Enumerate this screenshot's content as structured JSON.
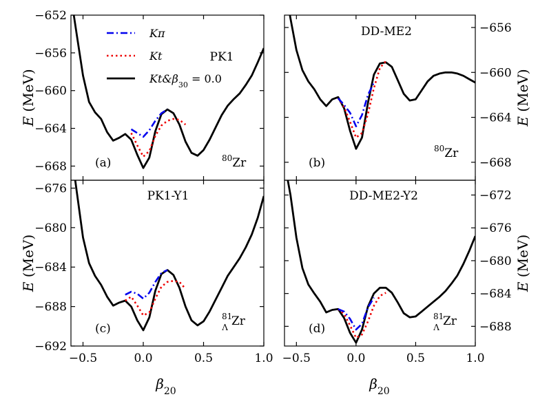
{
  "x_axis_label": "β20",
  "y_axis_label": "E (MeV)",
  "legend": [
    {
      "key": "k_pi",
      "label": "Kπ",
      "color": "#0000ee",
      "dash": "dashdot"
    },
    {
      "key": "k_t",
      "label": "Kt",
      "color": "#ee0000",
      "dash": "dotted"
    },
    {
      "key": "k_beta",
      "label": "Kt&β30 = 0.0",
      "color": "#000000",
      "dash": "solid"
    }
  ],
  "chart_data": [
    {
      "type": "line",
      "panel_label": "(a)",
      "title": "PK1",
      "nucleus": "80Zr",
      "xlim": [
        -0.6,
        1.0
      ],
      "ylim": [
        -669.5,
        -652
      ],
      "yticks": [
        -652,
        -656,
        -660,
        -664,
        -668
      ],
      "xticks": [
        -0.5,
        0.0,
        0.5,
        1.0
      ],
      "y_axis_side": "left",
      "series": [
        {
          "name": "Kπ",
          "color": "#0000ee",
          "style": "dashdot",
          "x": [
            -0.1,
            -0.05,
            0.0,
            0.05,
            0.1,
            0.15,
            0.2
          ],
          "y": [
            -664.1,
            -664.5,
            -664.9,
            -664.2,
            -663.2,
            -662.4,
            -662.0
          ]
        },
        {
          "name": "Kt",
          "color": "#ee0000",
          "style": "dotted",
          "x": [
            -0.1,
            -0.05,
            0.0,
            0.05,
            0.1,
            0.15,
            0.2,
            0.25,
            0.3,
            0.35
          ],
          "y": [
            -664.5,
            -665.8,
            -667.0,
            -666.4,
            -664.8,
            -663.7,
            -663.2,
            -663.0,
            -663.1,
            -663.6
          ]
        },
        {
          "name": "Kt&β30 = 0.0",
          "color": "#000000",
          "style": "solid",
          "x": [
            -0.6,
            -0.55,
            -0.5,
            -0.45,
            -0.4,
            -0.35,
            -0.3,
            -0.25,
            -0.2,
            -0.15,
            -0.1,
            -0.05,
            0.0,
            0.05,
            0.1,
            0.15,
            0.2,
            0.25,
            0.3,
            0.35,
            0.4,
            0.45,
            0.5,
            0.55,
            0.6,
            0.65,
            0.7,
            0.75,
            0.8,
            0.85,
            0.9,
            0.95,
            1.0
          ],
          "y": [
            -650.0,
            -654.2,
            -658.4,
            -661.2,
            -662.3,
            -663.0,
            -664.4,
            -665.3,
            -665.0,
            -664.6,
            -665.2,
            -666.8,
            -668.2,
            -667.1,
            -664.3,
            -662.5,
            -662.0,
            -662.4,
            -663.6,
            -665.4,
            -666.6,
            -666.9,
            -666.3,
            -665.2,
            -663.9,
            -662.6,
            -661.6,
            -660.9,
            -660.3,
            -659.4,
            -658.4,
            -657.0,
            -655.5
          ]
        }
      ]
    },
    {
      "type": "line",
      "panel_label": "(b)",
      "title": "DD-ME2",
      "nucleus": "80Zr",
      "xlim": [
        -0.6,
        1.0
      ],
      "ylim": [
        -669.6,
        -654.9
      ],
      "yticks": [
        -656,
        -660,
        -664,
        -668
      ],
      "xticks": [
        -0.5,
        0.0,
        0.5,
        1.0
      ],
      "y_axis_side": "right",
      "series": [
        {
          "name": "Kπ",
          "color": "#0000ee",
          "style": "dashdot",
          "x": [
            -0.15,
            -0.1,
            -0.05,
            0.0,
            0.05,
            0.1,
            0.15
          ],
          "y": [
            -662.3,
            -662.9,
            -663.6,
            -664.8,
            -663.8,
            -662.0,
            -660.9
          ]
        },
        {
          "name": "Kt",
          "color": "#ee0000",
          "style": "dotted",
          "x": [
            -0.15,
            -0.1,
            -0.05,
            0.0,
            0.05,
            0.1,
            0.15,
            0.2,
            0.25
          ],
          "y": [
            -662.3,
            -663.1,
            -664.4,
            -665.8,
            -665.4,
            -663.7,
            -661.4,
            -659.6,
            -659.0
          ]
        },
        {
          "name": "Kt&β30 = 0.0",
          "color": "#000000",
          "style": "solid",
          "x": [
            -0.6,
            -0.55,
            -0.5,
            -0.45,
            -0.4,
            -0.35,
            -0.3,
            -0.25,
            -0.2,
            -0.15,
            -0.1,
            -0.05,
            0.0,
            0.05,
            0.1,
            0.15,
            0.2,
            0.25,
            0.3,
            0.35,
            0.4,
            0.45,
            0.5,
            0.55,
            0.6,
            0.65,
            0.7,
            0.75,
            0.8,
            0.85,
            0.9,
            0.95,
            1.0
          ],
          "y": [
            -652.0,
            -655.2,
            -658.0,
            -659.8,
            -660.8,
            -661.5,
            -662.4,
            -663.0,
            -662.4,
            -662.2,
            -663.2,
            -665.2,
            -666.8,
            -665.8,
            -662.7,
            -660.2,
            -659.2,
            -659.1,
            -659.5,
            -660.7,
            -661.9,
            -662.5,
            -662.4,
            -661.6,
            -660.8,
            -660.3,
            -660.1,
            -660.0,
            -660.0,
            -660.1,
            -660.3,
            -660.6,
            -660.9
          ]
        }
      ]
    },
    {
      "type": "line",
      "panel_label": "(c)",
      "title": "PK1-Y1",
      "nucleus": "81ΛZr",
      "xlim": [
        -0.6,
        1.0
      ],
      "ylim": [
        -692,
        -675.2
      ],
      "yticks": [
        -676,
        -680,
        -684,
        -688,
        -692
      ],
      "xticks": [
        -0.5,
        0.0,
        0.5,
        1.0
      ],
      "y_axis_side": "left",
      "series": [
        {
          "name": "Kπ",
          "color": "#0000ee",
          "style": "dashdot",
          "x": [
            -0.15,
            -0.1,
            -0.05,
            0.0,
            0.05,
            0.1,
            0.15,
            0.2
          ],
          "y": [
            -686.8,
            -686.5,
            -686.7,
            -687.2,
            -686.6,
            -685.5,
            -684.6,
            -684.3
          ]
        },
        {
          "name": "Kt",
          "color": "#ee0000",
          "style": "dotted",
          "x": [
            -0.15,
            -0.1,
            -0.05,
            0.0,
            0.05,
            0.1,
            0.15,
            0.2,
            0.25,
            0.3,
            0.35
          ],
          "y": [
            -687.4,
            -687.0,
            -687.9,
            -688.9,
            -688.6,
            -687.2,
            -686.0,
            -685.5,
            -685.4,
            -685.5,
            -686.2
          ]
        },
        {
          "name": "Kt&β30 = 0.0",
          "color": "#000000",
          "style": "solid",
          "x": [
            -0.6,
            -0.55,
            -0.5,
            -0.45,
            -0.4,
            -0.35,
            -0.3,
            -0.25,
            -0.2,
            -0.15,
            -0.1,
            -0.05,
            0.0,
            0.05,
            0.1,
            0.15,
            0.2,
            0.25,
            0.3,
            0.35,
            0.4,
            0.45,
            0.5,
            0.55,
            0.6,
            0.65,
            0.7,
            0.75,
            0.8,
            0.85,
            0.9,
            0.95,
            1.0
          ],
          "y": [
            -672.0,
            -676.5,
            -681.0,
            -683.6,
            -684.9,
            -685.8,
            -687.0,
            -687.9,
            -687.6,
            -687.4,
            -688.0,
            -689.4,
            -690.4,
            -689.1,
            -686.4,
            -684.7,
            -684.3,
            -684.8,
            -686.1,
            -688.0,
            -689.4,
            -689.9,
            -689.5,
            -688.5,
            -687.3,
            -686.1,
            -684.9,
            -684.0,
            -683.1,
            -682.0,
            -680.7,
            -679.0,
            -676.8
          ]
        }
      ]
    },
    {
      "type": "line",
      "panel_label": "(d)",
      "title": "DD-ME2-Y2",
      "nucleus": "81ΛZr",
      "xlim": [
        -0.6,
        1.0
      ],
      "ylim": [
        -690.4,
        -670.2
      ],
      "yticks": [
        -672,
        -676,
        -680,
        -684,
        -688
      ],
      "xticks": [
        -0.5,
        0.0,
        0.5,
        1.0
      ],
      "y_axis_side": "right",
      "series": [
        {
          "name": "Kπ",
          "color": "#0000ee",
          "style": "dashdot",
          "x": [
            -0.15,
            -0.1,
            -0.05,
            0.0,
            0.05,
            0.1,
            0.15
          ],
          "y": [
            -685.9,
            -686.2,
            -687.1,
            -688.4,
            -687.7,
            -685.7,
            -684.5
          ]
        },
        {
          "name": "Kt",
          "color": "#ee0000",
          "style": "dotted",
          "x": [
            -0.15,
            -0.1,
            -0.05,
            0.0,
            0.05,
            0.1,
            0.15,
            0.2,
            0.25
          ],
          "y": [
            -685.9,
            -686.5,
            -687.9,
            -689.4,
            -689.0,
            -687.4,
            -685.5,
            -684.3,
            -683.9
          ]
        },
        {
          "name": "Kt&β30 = 0.0",
          "color": "#000000",
          "style": "solid",
          "x": [
            -0.6,
            -0.55,
            -0.5,
            -0.45,
            -0.4,
            -0.35,
            -0.3,
            -0.25,
            -0.2,
            -0.15,
            -0.1,
            -0.05,
            0.0,
            0.05,
            0.1,
            0.15,
            0.2,
            0.25,
            0.3,
            0.35,
            0.4,
            0.45,
            0.5,
            0.55,
            0.6,
            0.65,
            0.7,
            0.75,
            0.8,
            0.85,
            0.9,
            0.95,
            1.0
          ],
          "y": [
            -668.0,
            -672.0,
            -677.2,
            -680.9,
            -682.9,
            -684.0,
            -685.0,
            -686.3,
            -686.0,
            -685.9,
            -687.0,
            -688.8,
            -690.0,
            -688.4,
            -685.6,
            -684.0,
            -683.3,
            -683.3,
            -683.9,
            -685.1,
            -686.4,
            -686.9,
            -686.8,
            -686.2,
            -685.6,
            -685.0,
            -684.4,
            -683.7,
            -682.8,
            -681.8,
            -680.4,
            -678.8,
            -677.0
          ]
        }
      ]
    }
  ]
}
